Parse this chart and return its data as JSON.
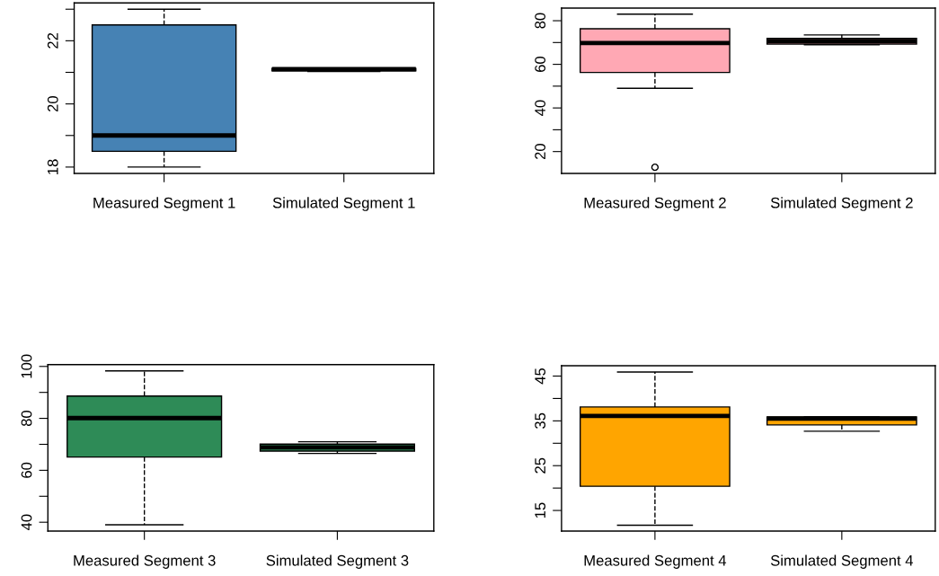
{
  "chart_data": [
    {
      "type": "box",
      "categories": [
        "Measured Segment 1",
        "Simulated Segment 1"
      ],
      "colors": [
        "#4682b4",
        "#4682b4"
      ],
      "line_style": "dashed",
      "grid": false,
      "ylim": [
        17.8,
        23.2
      ],
      "yticks": [
        18,
        {
          "value": 19,
          "label": null
        },
        20,
        {
          "value": 21,
          "label": null
        },
        22,
        {
          "value": 23,
          "label": null
        }
      ],
      "boxes": [
        {
          "low": 18.0,
          "q1": 18.5,
          "median": 19.0,
          "q3": 22.5,
          "high": 23.0
        },
        {
          "low": 21.03,
          "q1": 21.05,
          "median": 21.1,
          "q3": 21.12,
          "high": 21.12
        }
      ]
    },
    {
      "type": "box",
      "categories": [
        "Measured Segment 2",
        "Simulated Segment 2"
      ],
      "colors": [
        "#ffa8b4",
        "#ffa8b4"
      ],
      "line_style": "dashed",
      "grid": false,
      "ylim": [
        10,
        85.8
      ],
      "yticks": [
        20,
        {
          "value": 30,
          "label": null
        },
        40,
        {
          "value": 50,
          "label": null
        },
        60,
        {
          "value": 70,
          "label": null
        },
        80
      ],
      "boxes": [
        {
          "low": 49,
          "q1": 56.3,
          "median": 69.8,
          "q3": 76.3,
          "high": 83,
          "outliers": [
            12.8
          ]
        },
        {
          "low": 69.0,
          "q1": 69.3,
          "median": 70.7,
          "q3": 71.9,
          "high": 73.5
        }
      ]
    },
    {
      "type": "box",
      "categories": [
        "Measured Segment 3",
        "Simulated Segment 3"
      ],
      "colors": [
        "#2e8b57",
        "#2e8b57"
      ],
      "line_style": "dashed",
      "grid": false,
      "ylim": [
        36.6,
        100.7
      ],
      "yticks": [
        40,
        {
          "value": 50,
          "label": null
        },
        60,
        {
          "value": 70,
          "label": null
        },
        80,
        {
          "value": 90,
          "label": null
        },
        100
      ],
      "boxes": [
        {
          "low": 39,
          "q1": 65.1,
          "median": 80.1,
          "q3": 88.6,
          "high": 98.3
        },
        {
          "low": 66.5,
          "q1": 67.4,
          "median": 68.8,
          "q3": 70.1,
          "high": 71.0
        }
      ]
    },
    {
      "type": "box",
      "categories": [
        "Measured Segment 4",
        "Simulated Segment 4"
      ],
      "colors": [
        "#ffa500",
        "#ffa500"
      ],
      "line_style": "dashed",
      "grid": false,
      "ylim": [
        10.4,
        47.3
      ],
      "yticks": [
        15,
        {
          "value": 20,
          "label": null
        },
        25,
        {
          "value": 30,
          "label": null
        },
        35,
        {
          "value": 40,
          "label": null
        },
        45
      ],
      "boxes": [
        {
          "low": 11.7,
          "q1": 20.4,
          "median": 36.1,
          "q3": 38.1,
          "high": 45.9
        },
        {
          "low": 32.7,
          "q1": 34.1,
          "median": 35.5,
          "q3": 35.9,
          "high": 35.9
        }
      ]
    }
  ]
}
